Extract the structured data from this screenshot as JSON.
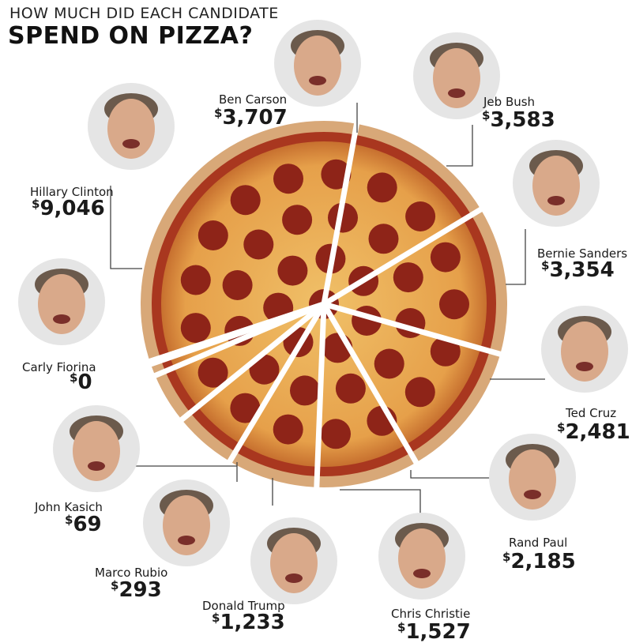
{
  "header": {
    "title_line1": "HOW MUCH DID EACH CANDIDATE",
    "title_line2": "SPEND ON PIZZA?"
  },
  "colors": {
    "crust": "#d8a878",
    "sauce": "#a9371f",
    "cheese": "#e6a04a",
    "pepperoni": "#8e2418",
    "leader": "#444444",
    "text": "#1a1a1a"
  },
  "chart_data": {
    "type": "pie",
    "title": "HOW MUCH DID EACH CANDIDATE SPEND ON PIZZA?",
    "currency": "$",
    "slices": [
      {
        "name": "Ben Carson",
        "value": 3707,
        "label": "$3,707"
      },
      {
        "name": "Jeb Bush",
        "value": 3583,
        "label": "$3,583"
      },
      {
        "name": "Bernie Sanders",
        "value": 3354,
        "label": "$3,354"
      },
      {
        "name": "Ted Cruz",
        "value": 2481,
        "label": "$2,481"
      },
      {
        "name": "Rand Paul",
        "value": 2185,
        "label": "$2,185"
      },
      {
        "name": "Chris Christie",
        "value": 1527,
        "label": "$1,527"
      },
      {
        "name": "Donald Trump",
        "value": 1233,
        "label": "$1,233"
      },
      {
        "name": "Marco Rubio",
        "value": 293,
        "label": "$293"
      },
      {
        "name": "John Kasich",
        "value": 69,
        "label": "$69"
      },
      {
        "name": "Carly Fiorina",
        "value": 0,
        "label": "$0"
      },
      {
        "name": "Hillary Clinton",
        "value": 9046,
        "label": "$9,046"
      }
    ]
  }
}
